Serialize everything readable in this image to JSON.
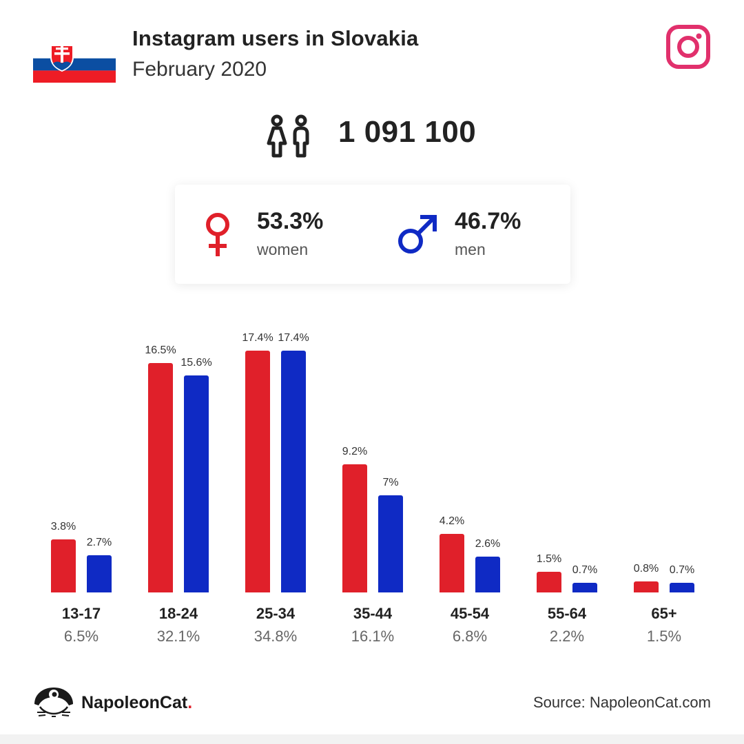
{
  "header": {
    "title": "Instagram users in Slovakia",
    "subtitle": "February 2020"
  },
  "total_users": "1 091 100",
  "gender": {
    "women": {
      "pct": "53.3%",
      "label": "women",
      "color": "#e0202a"
    },
    "men": {
      "pct": "46.7%",
      "label": "men",
      "color": "#0f2ac4"
    }
  },
  "colors": {
    "women": "#e0202a",
    "men": "#0f2ac4",
    "instagram": "#e1306c"
  },
  "chart_data": {
    "type": "bar",
    "categories": [
      "13-17",
      "18-24",
      "25-34",
      "35-44",
      "45-54",
      "55-64",
      "65+"
    ],
    "category_totals": [
      "6.5%",
      "32.1%",
      "34.8%",
      "16.1%",
      "6.8%",
      "2.2%",
      "1.5%"
    ],
    "series": [
      {
        "values": [
          3.8,
          16.5,
          17.4,
          9.2,
          4.2,
          1.5,
          0.8
        ],
        "labels": [
          "3.8%",
          "16.5%",
          "17.4%",
          "9.2%",
          "4.2%",
          "1.5%",
          "0.8%"
        ],
        "color": "#e0202a"
      },
      {
        "values": [
          2.7,
          15.6,
          17.4,
          7,
          2.6,
          0.7,
          0.7
        ],
        "labels": [
          "2.7%",
          "15.6%",
          "17.4%",
          "7%",
          "2.6%",
          "0.7%",
          "0.7%"
        ],
        "color": "#0f2ac4"
      }
    ],
    "ylim": [
      0,
      17.4
    ],
    "grid": false,
    "legend": "none"
  },
  "footer": {
    "brand_name": "NapoleonCat",
    "brand_dot": ".",
    "source": "Source: NapoleonCat.com"
  }
}
